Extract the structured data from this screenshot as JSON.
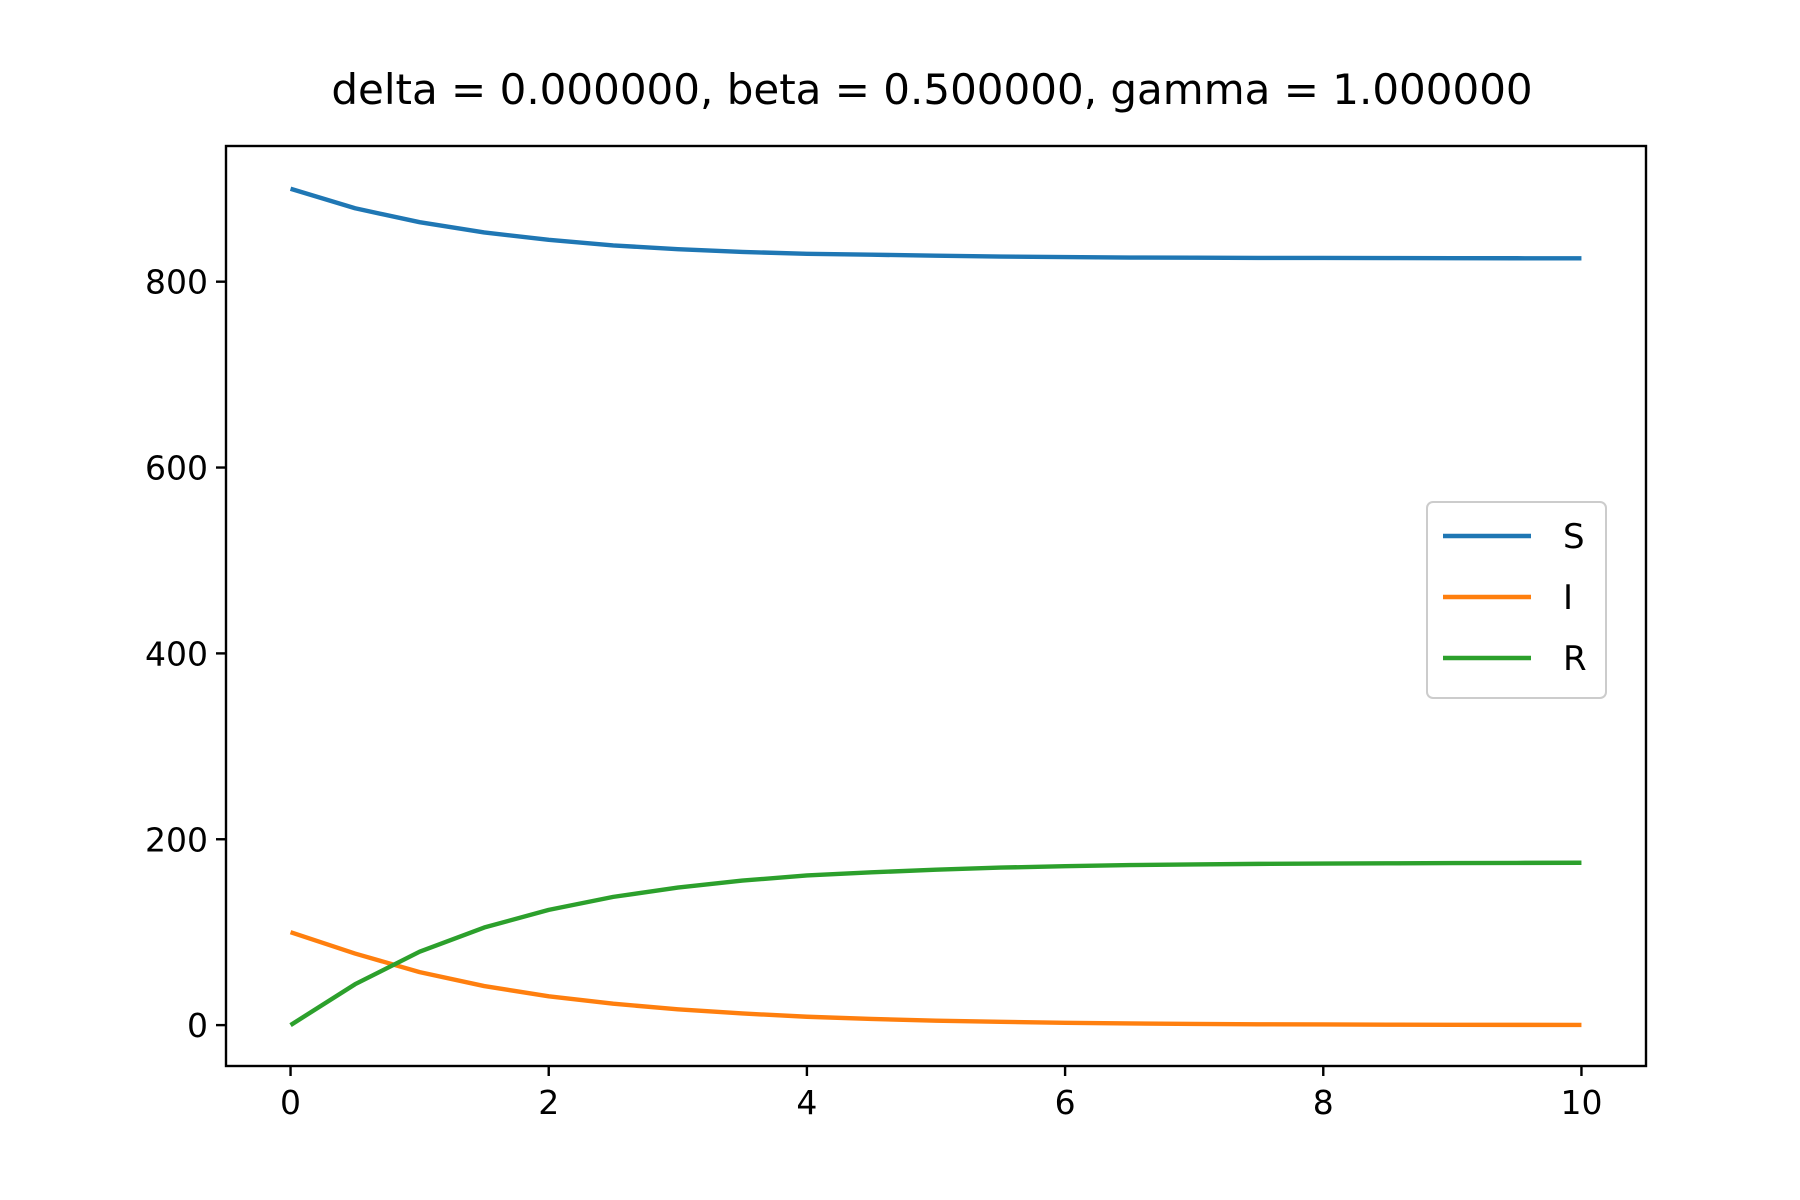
{
  "chart_data": {
    "type": "line",
    "title": "delta = 0.000000, beta = 0.500000, gamma = 1.000000",
    "xlabel": "",
    "ylabel": "",
    "xlim": [
      -0.5,
      10.5
    ],
    "ylim": [
      -44,
      946
    ],
    "xticks": [
      0,
      2,
      4,
      6,
      8,
      10
    ],
    "xtick_labels": [
      "0",
      "2",
      "4",
      "6",
      "8",
      "10"
    ],
    "yticks": [
      0,
      200,
      400,
      600,
      800
    ],
    "ytick_labels": [
      "0",
      "200",
      "400",
      "600",
      "800"
    ],
    "grid": false,
    "legend_position": "center-right",
    "series": [
      {
        "name": "S",
        "color": "#1f77b4",
        "x": [
          0,
          0.5,
          1,
          1.5,
          2,
          2.5,
          3,
          3.5,
          4,
          4.5,
          5,
          5.5,
          6,
          6.5,
          7,
          7.5,
          8,
          8.5,
          9,
          9.5,
          10
        ],
        "y": [
          900,
          879,
          864,
          853,
          845,
          839,
          835,
          832,
          830,
          829,
          828,
          827,
          826.5,
          826,
          825.8,
          825.6,
          825.5,
          825.4,
          825.3,
          825.2,
          825.1
        ]
      },
      {
        "name": "I",
        "color": "#ff7f0e",
        "x": [
          0,
          0.5,
          1,
          1.5,
          2,
          2.5,
          3,
          3.5,
          4,
          4.5,
          5,
          5.5,
          6,
          6.5,
          7,
          7.5,
          8,
          8.5,
          9,
          9.5,
          10
        ],
        "y": [
          100,
          77,
          57,
          42,
          31,
          23,
          17,
          12.5,
          9,
          6.6,
          4.8,
          3.5,
          2.5,
          1.8,
          1.3,
          0.9,
          0.7,
          0.5,
          0.35,
          0.25,
          0.2
        ]
      },
      {
        "name": "R",
        "color": "#2ca02c",
        "x": [
          0,
          0.5,
          1,
          1.5,
          2,
          2.5,
          3,
          3.5,
          4,
          4.5,
          5,
          5.5,
          6,
          6.5,
          7,
          7.5,
          8,
          8.5,
          9,
          9.5,
          10
        ],
        "y": [
          0,
          44,
          79,
          105,
          124,
          138,
          148,
          155.5,
          161,
          164.4,
          167.2,
          169.5,
          171,
          172.2,
          172.9,
          173.5,
          173.8,
          174.1,
          174.35,
          174.55,
          174.7
        ]
      }
    ]
  }
}
